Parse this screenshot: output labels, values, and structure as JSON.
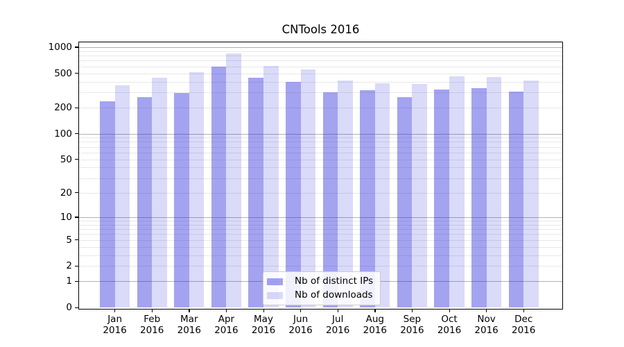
{
  "chart_data": {
    "type": "bar",
    "title": "CNTools 2016",
    "categories": [
      "Jan",
      "Feb",
      "Mar",
      "Apr",
      "May",
      "Jun",
      "Jul",
      "Aug",
      "Sep",
      "Oct",
      "Nov",
      "Dec"
    ],
    "year_label": "2016",
    "series": [
      {
        "name": "Nb of distinct IPs",
        "base_color": "#1919da",
        "alpha": 0.4,
        "rendered_color": "#a3a3f0",
        "values": [
          238,
          267,
          298,
          595,
          440,
          401,
          304,
          321,
          267,
          326,
          338,
          305
        ]
      },
      {
        "name": "Nb of downloads",
        "base_color": "#1919da",
        "alpha": 0.16,
        "rendered_color": "#dadaf9",
        "values": [
          365,
          445,
          519,
          850,
          604,
          559,
          414,
          386,
          374,
          465,
          454,
          414
        ]
      }
    ],
    "yscale": "log10(value+1)",
    "ytick_labels": [
      0,
      1,
      2,
      5,
      10,
      20,
      50,
      100,
      200,
      500,
      1000
    ],
    "ylim": [
      0,
      1140
    ],
    "xlabel": "",
    "ylabel": "",
    "grid": {
      "major_values": [
        1,
        10,
        100,
        1000
      ],
      "major_color": "#b2b2b2",
      "minor_color": "#e8e8e8"
    },
    "legend": {
      "position": "lower center",
      "border_color": "#cccccc"
    },
    "spine_color": "#000000",
    "background_color": "#ffffff"
  }
}
